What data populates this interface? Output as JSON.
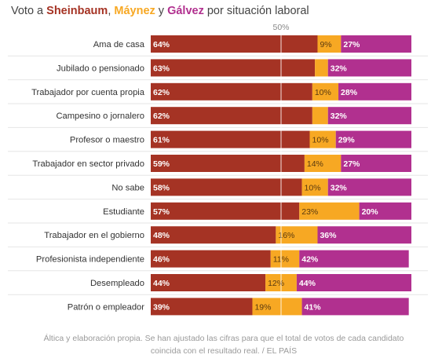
{
  "title": {
    "prefix": "Voto a ",
    "c1": "Sheinbaum",
    "sep1": ", ",
    "c2": "Máynez",
    "sep2": " y ",
    "c3": "Gálvez",
    "suffix": " por situación laboral"
  },
  "colors": {
    "sheinbaum": "#a53324",
    "maynez": "#f7a823",
    "galvez": "#b1308f"
  },
  "footnote": {
    "line1": "Áltica y elaboración propia. Se han ajustado las cifras para que el total de votos de cada candidato",
    "line2": "coincida con el resultado real. / EL PAÍS"
  },
  "chart_data": {
    "type": "bar",
    "orientation": "horizontal",
    "stacked": true,
    "unit": "%",
    "reference_line": {
      "value": 50,
      "label": "50%"
    },
    "xlim": [
      0,
      100
    ],
    "categories": [
      "Ama de casa",
      "Jubilado o pensionado",
      "Trabajador por cuenta propia",
      "Campesino o jornalero",
      "Profesor o maestro",
      "Trabajador en sector privado",
      "No sabe",
      "Estudiante",
      "Trabajador en el gobierno",
      "Profesionista independiente",
      "Desempleado",
      "Patrón o empleador"
    ],
    "series": [
      {
        "name": "Sheinbaum",
        "color": "#a53324",
        "values": [
          64,
          63,
          62,
          62,
          61,
          59,
          58,
          57,
          48,
          46,
          44,
          39
        ],
        "labels": [
          "64%",
          "63%",
          "62%",
          "62%",
          "61%",
          "59%",
          "58%",
          "57%",
          "48%",
          "46%",
          "44%",
          "39%"
        ]
      },
      {
        "name": "Máynez",
        "color": "#f7a823",
        "values": [
          9,
          5,
          10,
          6,
          10,
          14,
          10,
          23,
          16,
          11,
          12,
          19
        ],
        "labels": [
          "9%",
          "",
          "10%",
          "",
          "10%",
          "14%",
          "10%",
          "23%",
          "16%",
          "11%",
          "12%",
          "19%"
        ]
      },
      {
        "name": "Gálvez",
        "color": "#b1308f",
        "values": [
          27,
          32,
          28,
          32,
          29,
          27,
          32,
          20,
          36,
          42,
          44,
          41
        ],
        "labels": [
          "27%",
          "32%",
          "28%",
          "32%",
          "29%",
          "27%",
          "32%",
          "20%",
          "36%",
          "42%",
          "44%",
          "41%"
        ]
      }
    ]
  }
}
